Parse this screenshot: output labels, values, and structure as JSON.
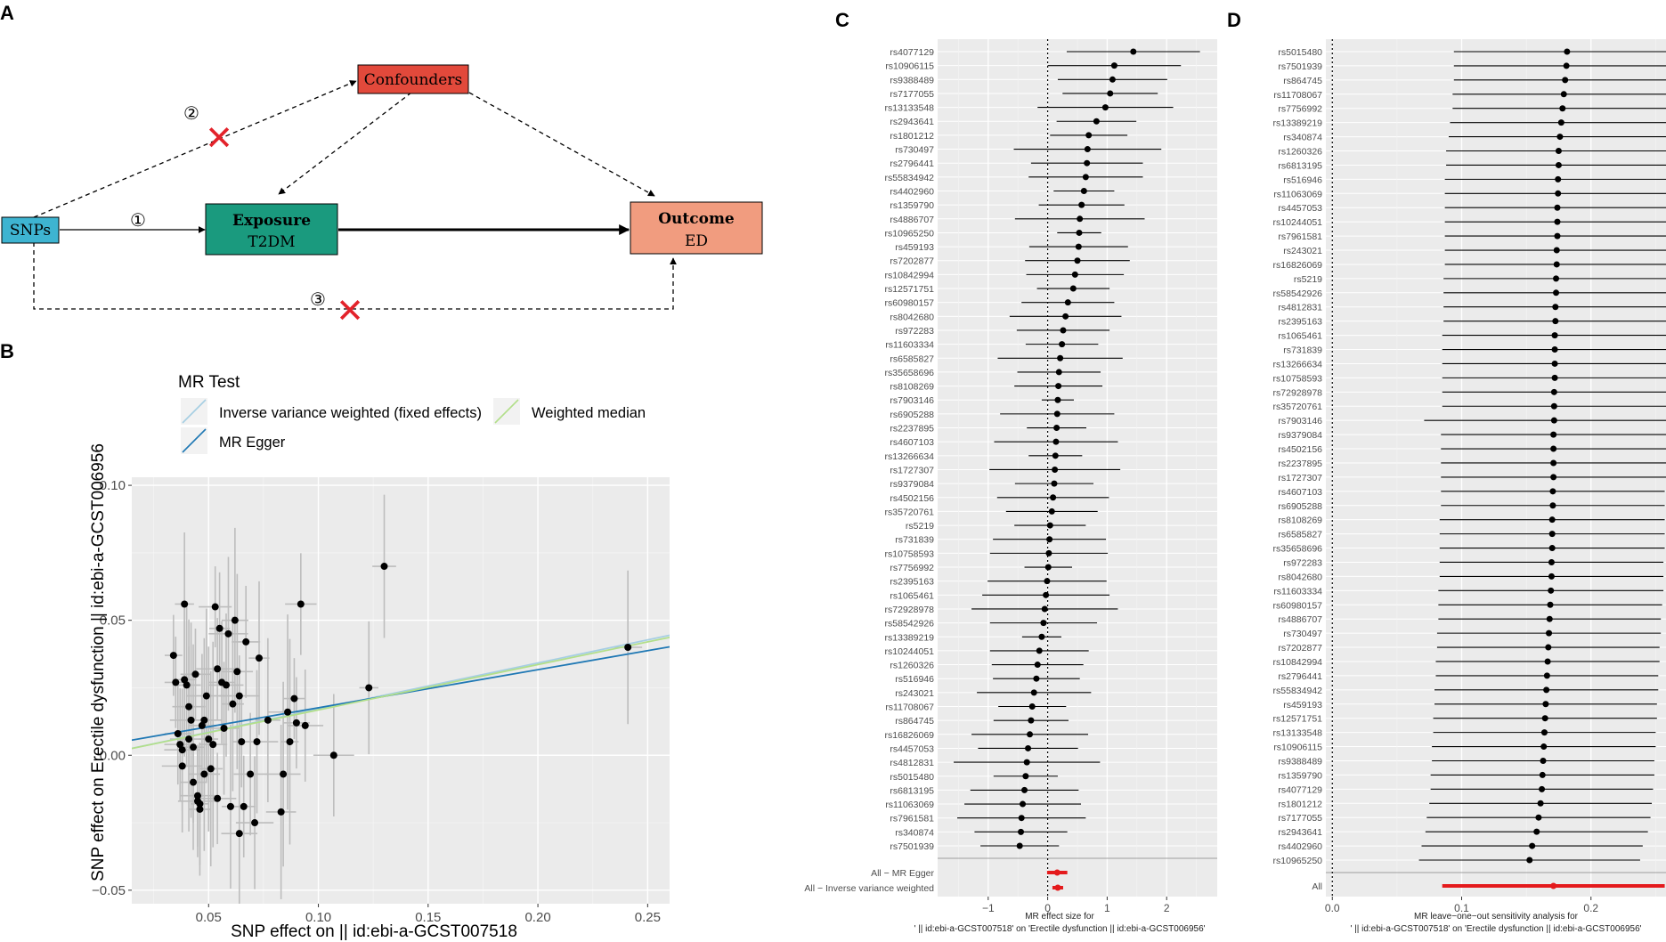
{
  "panels": {
    "a": "A",
    "b": "B",
    "c": "C",
    "d": "D"
  },
  "diagram": {
    "snps": "SNPs",
    "confounders": "Confounders",
    "exposure_title": "Exposure",
    "exposure_sub": "T2DM",
    "outcome_title": "Outcome",
    "outcome_sub": "ED",
    "path1": "①",
    "path2": "②",
    "path3": "③",
    "cross": "✕"
  },
  "colors": {
    "snp_box": "#3eb4d1",
    "confounder_box": "#e2493b",
    "exposure_box": "#1a9a7e",
    "outcome_box": "#f19c7f",
    "cross": "#e3232b",
    "panel_bg": "#ebebeb",
    "ivw": "#a6cee3",
    "egger": "#1f78b4",
    "median": "#b2df8a",
    "summary": "#e41a1c"
  },
  "chart_data": [
    {
      "id": "B",
      "type": "scatter",
      "title": "",
      "legend_title": "MR Test",
      "legend": [
        "Inverse variance weighted (fixed effects)",
        "MR Egger",
        "Weighted median"
      ],
      "xlabel": "SNP effect on  || id:ebi-a-GCST007518",
      "ylabel": "SNP effect on Erectile dysfunction || id:ebi-a-GCST006956",
      "xlim": [
        0.015,
        0.26
      ],
      "ylim": [
        -0.055,
        0.103
      ],
      "xticks": [
        "0.05",
        "0.10",
        "0.15",
        "0.20",
        "0.25"
      ],
      "yticks": [
        "−0.05",
        "0.00",
        "0.05",
        "0.10"
      ],
      "lines": [
        {
          "name": "Inverse variance weighted (fixed effects)",
          "intercept": 0,
          "slope": 0.171
        },
        {
          "name": "MR Egger",
          "intercept": 0.0035,
          "slope": 0.141
        },
        {
          "name": "Weighted median",
          "intercept": 0,
          "slope": 0.168
        }
      ],
      "points": [
        [
          0.034,
          0.037
        ],
        [
          0.035,
          0.027
        ],
        [
          0.036,
          0.008
        ],
        [
          0.037,
          0.004
        ],
        [
          0.038,
          0.002
        ],
        [
          0.038,
          -0.004
        ],
        [
          0.039,
          0.056
        ],
        [
          0.039,
          0.028
        ],
        [
          0.04,
          0.026
        ],
        [
          0.041,
          0.018
        ],
        [
          0.041,
          0.006
        ],
        [
          0.042,
          0.013
        ],
        [
          0.043,
          0.003
        ],
        [
          0.043,
          -0.01
        ],
        [
          0.044,
          0.03
        ],
        [
          0.045,
          -0.015
        ],
        [
          0.045,
          -0.017
        ],
        [
          0.046,
          -0.018
        ],
        [
          0.046,
          -0.02
        ],
        [
          0.047,
          0.011
        ],
        [
          0.048,
          -0.007
        ],
        [
          0.048,
          0.013
        ],
        [
          0.049,
          0.022
        ],
        [
          0.05,
          0.006
        ],
        [
          0.051,
          -0.005
        ],
        [
          0.052,
          0.004
        ],
        [
          0.053,
          0.055
        ],
        [
          0.054,
          -0.016
        ],
        [
          0.054,
          0.032
        ],
        [
          0.055,
          0.047
        ],
        [
          0.056,
          0.027
        ],
        [
          0.057,
          0.01
        ],
        [
          0.058,
          0.026
        ],
        [
          0.059,
          0.045
        ],
        [
          0.06,
          -0.019
        ],
        [
          0.061,
          0.019
        ],
        [
          0.062,
          0.05
        ],
        [
          0.063,
          0.031
        ],
        [
          0.064,
          -0.029
        ],
        [
          0.064,
          0.022
        ],
        [
          0.065,
          0.005
        ],
        [
          0.066,
          -0.019
        ],
        [
          0.067,
          0.042
        ],
        [
          0.069,
          -0.007
        ],
        [
          0.071,
          -0.025
        ],
        [
          0.072,
          0.005
        ],
        [
          0.073,
          0.036
        ],
        [
          0.077,
          0.013
        ],
        [
          0.083,
          -0.021
        ],
        [
          0.084,
          -0.007
        ],
        [
          0.086,
          0.016
        ],
        [
          0.087,
          0.005
        ],
        [
          0.089,
          0.021
        ],
        [
          0.09,
          0.012
        ],
        [
          0.092,
          0.056
        ],
        [
          0.094,
          0.011
        ],
        [
          0.107,
          0.0
        ],
        [
          0.123,
          0.025
        ],
        [
          0.13,
          0.07
        ],
        [
          0.241,
          0.04
        ]
      ]
    },
    {
      "id": "C",
      "type": "forest",
      "xlabel": "MR effect size for\n'  || id:ebi-a-GCST007518' on 'Erectile dysfunction || id:ebi-a-GCST006956'",
      "xlim": [
        -1.85,
        2.85
      ],
      "xticks": [
        "−1",
        "0",
        "1",
        "2"
      ],
      "rows": [
        {
          "snp": "rs4077129",
          "b": 1.44,
          "lo": 0.32,
          "hi": 2.56
        },
        {
          "snp": "rs10906115",
          "b": 1.12,
          "lo": 0.0,
          "hi": 2.24
        },
        {
          "snp": "rs9388489",
          "b": 1.09,
          "lo": 0.17,
          "hi": 2.01
        },
        {
          "snp": "rs7177055",
          "b": 1.05,
          "lo": 0.25,
          "hi": 1.85
        },
        {
          "snp": "rs13133548",
          "b": 0.97,
          "lo": -0.17,
          "hi": 2.11
        },
        {
          "snp": "rs2943641",
          "b": 0.82,
          "lo": 0.15,
          "hi": 1.49
        },
        {
          "snp": "rs1801212",
          "b": 0.69,
          "lo": 0.04,
          "hi": 1.34
        },
        {
          "snp": "rs730497",
          "b": 0.67,
          "lo": -0.57,
          "hi": 1.91
        },
        {
          "snp": "rs2796441",
          "b": 0.66,
          "lo": -0.28,
          "hi": 1.6
        },
        {
          "snp": "rs55834942",
          "b": 0.64,
          "lo": -0.32,
          "hi": 1.6
        },
        {
          "snp": "rs4402960",
          "b": 0.61,
          "lo": 0.1,
          "hi": 1.12
        },
        {
          "snp": "rs1359790",
          "b": 0.57,
          "lo": -0.15,
          "hi": 1.29
        },
        {
          "snp": "rs4886707",
          "b": 0.54,
          "lo": -0.55,
          "hi": 1.63
        },
        {
          "snp": "rs10965250",
          "b": 0.53,
          "lo": 0.16,
          "hi": 0.9
        },
        {
          "snp": "rs459193",
          "b": 0.52,
          "lo": -0.31,
          "hi": 1.35
        },
        {
          "snp": "rs7202877",
          "b": 0.5,
          "lo": -0.38,
          "hi": 1.38
        },
        {
          "snp": "rs10842994",
          "b": 0.46,
          "lo": -0.36,
          "hi": 1.28
        },
        {
          "snp": "rs12571751",
          "b": 0.43,
          "lo": -0.18,
          "hi": 1.04
        },
        {
          "snp": "rs60980157",
          "b": 0.34,
          "lo": -0.44,
          "hi": 1.12
        },
        {
          "snp": "rs8042680",
          "b": 0.3,
          "lo": -0.64,
          "hi": 1.24
        },
        {
          "snp": "rs972283",
          "b": 0.26,
          "lo": -0.52,
          "hi": 1.04
        },
        {
          "snp": "rs11603334",
          "b": 0.24,
          "lo": -0.37,
          "hi": 0.85
        },
        {
          "snp": "rs6585827",
          "b": 0.21,
          "lo": -0.84,
          "hi": 1.26
        },
        {
          "snp": "rs35658696",
          "b": 0.19,
          "lo": -0.51,
          "hi": 0.89
        },
        {
          "snp": "rs8108269",
          "b": 0.18,
          "lo": -0.56,
          "hi": 0.92
        },
        {
          "snp": "rs7903146",
          "b": 0.17,
          "lo": -0.1,
          "hi": 0.44
        },
        {
          "snp": "rs6905288",
          "b": 0.16,
          "lo": -0.8,
          "hi": 1.12
        },
        {
          "snp": "rs2237895",
          "b": 0.15,
          "lo": -0.35,
          "hi": 0.65
        },
        {
          "snp": "rs4607103",
          "b": 0.14,
          "lo": -0.9,
          "hi": 1.18
        },
        {
          "snp": "rs13266634",
          "b": 0.13,
          "lo": -0.32,
          "hi": 0.58
        },
        {
          "snp": "rs1727307",
          "b": 0.12,
          "lo": -0.98,
          "hi": 1.22
        },
        {
          "snp": "rs9379084",
          "b": 0.11,
          "lo": -0.55,
          "hi": 0.77
        },
        {
          "snp": "rs4502156",
          "b": 0.09,
          "lo": -0.85,
          "hi": 1.03
        },
        {
          "snp": "rs35720761",
          "b": 0.07,
          "lo": -0.7,
          "hi": 0.84
        },
        {
          "snp": "rs5219",
          "b": 0.04,
          "lo": -0.56,
          "hi": 0.64
        },
        {
          "snp": "rs731839",
          "b": 0.03,
          "lo": -0.92,
          "hi": 0.98
        },
        {
          "snp": "rs10758593",
          "b": 0.02,
          "lo": -0.97,
          "hi": 1.01
        },
        {
          "snp": "rs7756992",
          "b": 0.01,
          "lo": -0.39,
          "hi": 0.41
        },
        {
          "snp": "rs2395163",
          "b": -0.01,
          "lo": -1.01,
          "hi": 0.99
        },
        {
          "snp": "rs1065461",
          "b": -0.03,
          "lo": -1.1,
          "hi": 1.04
        },
        {
          "snp": "rs72928978",
          "b": -0.05,
          "lo": -1.28,
          "hi": 1.18
        },
        {
          "snp": "rs58542926",
          "b": -0.07,
          "lo": -0.97,
          "hi": 0.83
        },
        {
          "snp": "rs13389219",
          "b": -0.1,
          "lo": -0.43,
          "hi": 0.23
        },
        {
          "snp": "rs10244051",
          "b": -0.14,
          "lo": -0.97,
          "hi": 0.69
        },
        {
          "snp": "rs1260326",
          "b": -0.17,
          "lo": -0.94,
          "hi": 0.6
        },
        {
          "snp": "rs516946",
          "b": -0.19,
          "lo": -0.92,
          "hi": 0.54
        },
        {
          "snp": "rs243021",
          "b": -0.23,
          "lo": -1.19,
          "hi": 0.73
        },
        {
          "snp": "rs11708067",
          "b": -0.26,
          "lo": -0.83,
          "hi": 0.31
        },
        {
          "snp": "rs864745",
          "b": -0.28,
          "lo": -0.91,
          "hi": 0.35
        },
        {
          "snp": "rs16826069",
          "b": -0.3,
          "lo": -1.28,
          "hi": 0.68
        },
        {
          "snp": "rs4457053",
          "b": -0.33,
          "lo": -1.17,
          "hi": 0.51
        },
        {
          "snp": "rs4812831",
          "b": -0.35,
          "lo": -1.58,
          "hi": 0.88
        },
        {
          "snp": "rs5015480",
          "b": -0.37,
          "lo": -0.91,
          "hi": 0.17
        },
        {
          "snp": "rs6813195",
          "b": -0.39,
          "lo": -1.3,
          "hi": 0.52
        },
        {
          "snp": "rs11063069",
          "b": -0.42,
          "lo": -1.4,
          "hi": 0.56
        },
        {
          "snp": "rs7961581",
          "b": -0.44,
          "lo": -1.52,
          "hi": 0.64
        },
        {
          "snp": "rs340874",
          "b": -0.45,
          "lo": -1.23,
          "hi": 0.33
        },
        {
          "snp": "rs7501939",
          "b": -0.47,
          "lo": -1.13,
          "hi": 0.19
        }
      ],
      "summary": [
        {
          "label": "All − MR Egger",
          "b": 0.16,
          "lo": -0.01,
          "hi": 0.33
        },
        {
          "label": "All − Inverse variance weighted",
          "b": 0.17,
          "lo": 0.08,
          "hi": 0.26
        }
      ]
    },
    {
      "id": "D",
      "type": "forest",
      "xlabel": "MR leave−one−out sensitivity analysis for\n'  || id:ebi-a-GCST007518' on 'Erectile dysfunction || id:ebi-a-GCST006956'",
      "xlim": [
        -0.005,
        0.258
      ],
      "xticks": [
        "0.0",
        "0.1",
        "0.2"
      ],
      "rows": [
        {
          "snp": "rs5015480",
          "b": 0.1815,
          "lo": 0.094,
          "hi": 0.266
        },
        {
          "snp": "rs7501939",
          "b": 0.181,
          "lo": 0.094,
          "hi": 0.266
        },
        {
          "snp": "rs864745",
          "b": 0.18,
          "lo": 0.094,
          "hi": 0.265
        },
        {
          "snp": "rs11708067",
          "b": 0.179,
          "lo": 0.093,
          "hi": 0.265
        },
        {
          "snp": "rs7756992",
          "b": 0.178,
          "lo": 0.093,
          "hi": 0.264
        },
        {
          "snp": "rs13389219",
          "b": 0.177,
          "lo": 0.091,
          "hi": 0.263
        },
        {
          "snp": "rs340874",
          "b": 0.176,
          "lo": 0.09,
          "hi": 0.262
        },
        {
          "snp": "rs1260326",
          "b": 0.175,
          "lo": 0.088,
          "hi": 0.262
        },
        {
          "snp": "rs6813195",
          "b": 0.175,
          "lo": 0.088,
          "hi": 0.262
        },
        {
          "snp": "rs516946",
          "b": 0.1745,
          "lo": 0.087,
          "hi": 0.262
        },
        {
          "snp": "rs11063069",
          "b": 0.1745,
          "lo": 0.087,
          "hi": 0.262
        },
        {
          "snp": "rs4457053",
          "b": 0.174,
          "lo": 0.087,
          "hi": 0.261
        },
        {
          "snp": "rs10244051",
          "b": 0.174,
          "lo": 0.087,
          "hi": 0.261
        },
        {
          "snp": "rs7961581",
          "b": 0.174,
          "lo": 0.087,
          "hi": 0.261
        },
        {
          "snp": "rs243021",
          "b": 0.1735,
          "lo": 0.087,
          "hi": 0.26
        },
        {
          "snp": "rs16826069",
          "b": 0.1735,
          "lo": 0.087,
          "hi": 0.26
        },
        {
          "snp": "rs5219",
          "b": 0.173,
          "lo": 0.086,
          "hi": 0.26
        },
        {
          "snp": "rs58542926",
          "b": 0.173,
          "lo": 0.086,
          "hi": 0.26
        },
        {
          "snp": "rs4812831",
          "b": 0.1725,
          "lo": 0.086,
          "hi": 0.259
        },
        {
          "snp": "rs2395163",
          "b": 0.1725,
          "lo": 0.086,
          "hi": 0.259
        },
        {
          "snp": "rs1065461",
          "b": 0.172,
          "lo": 0.085,
          "hi": 0.259
        },
        {
          "snp": "rs731839",
          "b": 0.172,
          "lo": 0.085,
          "hi": 0.259
        },
        {
          "snp": "rs13266634",
          "b": 0.172,
          "lo": 0.085,
          "hi": 0.259
        },
        {
          "snp": "rs10758593",
          "b": 0.172,
          "lo": 0.085,
          "hi": 0.259
        },
        {
          "snp": "rs72928978",
          "b": 0.1715,
          "lo": 0.085,
          "hi": 0.258
        },
        {
          "snp": "rs35720761",
          "b": 0.1715,
          "lo": 0.085,
          "hi": 0.258
        },
        {
          "snp": "rs7903146",
          "b": 0.1715,
          "lo": 0.071,
          "hi": 0.272
        },
        {
          "snp": "rs9379084",
          "b": 0.171,
          "lo": 0.084,
          "hi": 0.258
        },
        {
          "snp": "rs4502156",
          "b": 0.171,
          "lo": 0.084,
          "hi": 0.258
        },
        {
          "snp": "rs2237895",
          "b": 0.171,
          "lo": 0.084,
          "hi": 0.258
        },
        {
          "snp": "rs1727307",
          "b": 0.171,
          "lo": 0.084,
          "hi": 0.258
        },
        {
          "snp": "rs4607103",
          "b": 0.1705,
          "lo": 0.084,
          "hi": 0.257
        },
        {
          "snp": "rs6905288",
          "b": 0.1705,
          "lo": 0.084,
          "hi": 0.257
        },
        {
          "snp": "rs8108269",
          "b": 0.17,
          "lo": 0.083,
          "hi": 0.257
        },
        {
          "snp": "rs6585827",
          "b": 0.17,
          "lo": 0.083,
          "hi": 0.257
        },
        {
          "snp": "rs35658696",
          "b": 0.17,
          "lo": 0.083,
          "hi": 0.257
        },
        {
          "snp": "rs972283",
          "b": 0.1695,
          "lo": 0.083,
          "hi": 0.256
        },
        {
          "snp": "rs8042680",
          "b": 0.1695,
          "lo": 0.083,
          "hi": 0.256
        },
        {
          "snp": "rs11603334",
          "b": 0.169,
          "lo": 0.082,
          "hi": 0.256
        },
        {
          "snp": "rs60980157",
          "b": 0.1685,
          "lo": 0.082,
          "hi": 0.255
        },
        {
          "snp": "rs4886707",
          "b": 0.168,
          "lo": 0.082,
          "hi": 0.254
        },
        {
          "snp": "rs730497",
          "b": 0.1675,
          "lo": 0.081,
          "hi": 0.254
        },
        {
          "snp": "rs7202877",
          "b": 0.167,
          "lo": 0.081,
          "hi": 0.253
        },
        {
          "snp": "rs10842994",
          "b": 0.1665,
          "lo": 0.08,
          "hi": 0.253
        },
        {
          "snp": "rs2796441",
          "b": 0.166,
          "lo": 0.08,
          "hi": 0.252
        },
        {
          "snp": "rs55834942",
          "b": 0.1655,
          "lo": 0.079,
          "hi": 0.252
        },
        {
          "snp": "rs459193",
          "b": 0.165,
          "lo": 0.079,
          "hi": 0.251
        },
        {
          "snp": "rs12571751",
          "b": 0.1645,
          "lo": 0.078,
          "hi": 0.251
        },
        {
          "snp": "rs13133548",
          "b": 0.164,
          "lo": 0.078,
          "hi": 0.25
        },
        {
          "snp": "rs10906115",
          "b": 0.1635,
          "lo": 0.077,
          "hi": 0.25
        },
        {
          "snp": "rs9388489",
          "b": 0.163,
          "lo": 0.077,
          "hi": 0.249
        },
        {
          "snp": "rs1359790",
          "b": 0.1625,
          "lo": 0.076,
          "hi": 0.249
        },
        {
          "snp": "rs4077129",
          "b": 0.162,
          "lo": 0.076,
          "hi": 0.248
        },
        {
          "snp": "rs1801212",
          "b": 0.161,
          "lo": 0.075,
          "hi": 0.247
        },
        {
          "snp": "rs7177055",
          "b": 0.1595,
          "lo": 0.073,
          "hi": 0.246
        },
        {
          "snp": "rs2943641",
          "b": 0.158,
          "lo": 0.072,
          "hi": 0.244
        },
        {
          "snp": "rs4402960",
          "b": 0.1545,
          "lo": 0.069,
          "hi": 0.24
        },
        {
          "snp": "rs10965250",
          "b": 0.1525,
          "lo": 0.067,
          "hi": 0.238
        }
      ],
      "summary": [
        {
          "label": "All",
          "b": 0.171,
          "lo": 0.085,
          "hi": 0.257
        }
      ]
    }
  ]
}
